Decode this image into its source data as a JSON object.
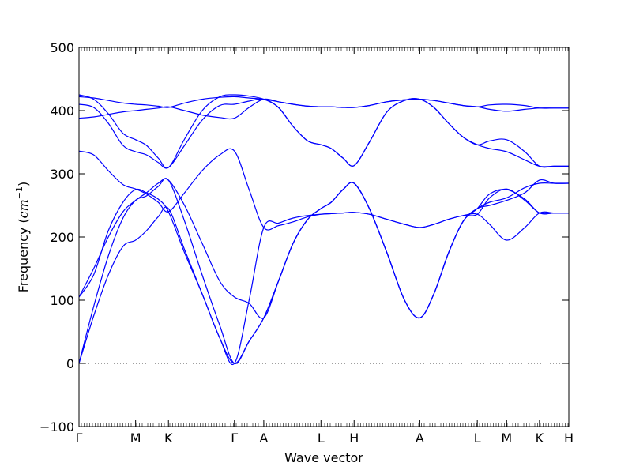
{
  "chart_data": {
    "type": "line",
    "title": "",
    "xlabel": "Wave vector",
    "ylabel": "Frequency",
    "ylabel_unit_prefix": "(",
    "ylabel_unit_italic": "cm",
    "ylabel_unit_exp": "−1",
    "ylabel_unit_suffix": ")",
    "ylim": [
      -100,
      500
    ],
    "yticks": [
      -100,
      0,
      100,
      200,
      300,
      400,
      500
    ],
    "xlim": [
      0,
      16.7
    ],
    "xticks": [
      {
        "label": "Γ",
        "x": 0
      },
      {
        "label": "M",
        "x": 1.93
      },
      {
        "label": "K",
        "x": 3.05
      },
      {
        "label": "Γ",
        "x": 5.3
      },
      {
        "label": "A",
        "x": 6.3
      },
      {
        "label": "L",
        "x": 8.25
      },
      {
        "label": "H",
        "x": 9.38
      },
      {
        "label": "A",
        "x": 11.62
      },
      {
        "label": "L",
        "x": 13.58
      },
      {
        "label": "M",
        "x": 14.58
      },
      {
        "label": "K",
        "x": 15.7
      },
      {
        "label": "H",
        "x": 16.7
      }
    ],
    "zero_line": "dotted",
    "series_color": "#0000ff",
    "series": [
      {
        "x": [
          0,
          0.5,
          1.0,
          1.5,
          1.93,
          2.3,
          2.7,
          3.05,
          3.6,
          4.2,
          4.8,
          5.3,
          5.8,
          6.3,
          6.8,
          7.3,
          7.8,
          8.25,
          8.6,
          9.0,
          9.38,
          9.9,
          10.5,
          11.1,
          11.62,
          12.1,
          12.6,
          13.1,
          13.58,
          14.0,
          14.58,
          15.2,
          15.7,
          16.2,
          16.7
        ],
        "values": [
          0,
          90,
          170,
          230,
          258,
          265,
          280,
          290,
          225,
          140,
          60,
          0,
          35,
          72,
          130,
          190,
          228,
          245,
          255,
          275,
          285,
          245,
          175,
          100,
          72,
          110,
          175,
          225,
          245,
          250,
          258,
          270,
          290,
          285,
          285
        ]
      },
      {
        "x": [
          0,
          0.5,
          1.0,
          1.5,
          1.93,
          2.3,
          2.7,
          3.05,
          3.6,
          4.2,
          4.8,
          5.3,
          5.8,
          6.3,
          6.8,
          7.3,
          7.8,
          8.25,
          8.6,
          9.0,
          9.38,
          9.9,
          10.5,
          11.1,
          11.62,
          12.1,
          12.6,
          13.1,
          13.58,
          14.0,
          14.58,
          15.2,
          15.7,
          16.2,
          16.7
        ],
        "values": [
          0,
          75,
          140,
          185,
          195,
          210,
          232,
          245,
          180,
          110,
          40,
          0,
          100,
          215,
          222,
          230,
          234,
          236,
          237,
          238,
          239,
          236,
          228,
          220,
          215,
          220,
          228,
          234,
          236,
          220,
          195,
          215,
          238,
          238,
          238
        ]
      },
      {
        "x": [
          0,
          0.5,
          1.0,
          1.5,
          1.93,
          2.3,
          2.7,
          3.05,
          3.6,
          4.2,
          4.8,
          5.3,
          5.8,
          6.3,
          6.8,
          7.3,
          7.8,
          8.25,
          8.6,
          9.0,
          9.38,
          9.9,
          10.5,
          11.1,
          11.62,
          12.1,
          12.6,
          13.1,
          13.58,
          14.0,
          14.58,
          15.2,
          15.7,
          16.2,
          16.7
        ],
        "values": [
          105,
          140,
          210,
          255,
          275,
          270,
          260,
          240,
          175,
          110,
          40,
          0,
          35,
          72,
          130,
          190,
          228,
          245,
          255,
          275,
          285,
          245,
          175,
          100,
          72,
          110,
          175,
          225,
          245,
          268,
          275,
          260,
          238,
          238,
          238
        ]
      },
      {
        "x": [
          0,
          0.5,
          1.0,
          1.5,
          1.93,
          2.3,
          2.7,
          3.05,
          3.6,
          4.2,
          4.8,
          5.3,
          5.8,
          6.3,
          6.8,
          7.3,
          7.8,
          8.25,
          8.6,
          9.0,
          9.38,
          9.9,
          10.5,
          11.1,
          11.62,
          12.1,
          12.6,
          13.1,
          13.58,
          14.0,
          14.58,
          15.2,
          15.7,
          16.2,
          16.7
        ],
        "values": [
          105,
          150,
          200,
          240,
          258,
          270,
          285,
          290,
          250,
          190,
          130,
          105,
          95,
          72,
          130,
          190,
          228,
          245,
          255,
          275,
          285,
          245,
          175,
          100,
          72,
          110,
          175,
          225,
          245,
          255,
          262,
          278,
          285,
          285,
          285
        ]
      },
      {
        "x": [
          0,
          0.5,
          1.0,
          1.5,
          1.93,
          2.3,
          2.7,
          3.05,
          3.6,
          4.2,
          4.8,
          5.3,
          5.8,
          6.3,
          6.8,
          7.3,
          7.8,
          8.25,
          8.6,
          9.0,
          9.38,
          9.9,
          10.5,
          11.1,
          11.62,
          12.1,
          12.6,
          13.1,
          13.58,
          14.0,
          14.58,
          15.2,
          15.7,
          16.2,
          16.7
        ],
        "values": [
          336,
          330,
          305,
          283,
          276,
          268,
          255,
          240,
          270,
          305,
          330,
          336,
          275,
          215,
          218,
          224,
          232,
          236,
          237,
          238,
          239,
          236,
          228,
          220,
          215,
          220,
          228,
          234,
          236,
          262,
          276,
          258,
          238,
          238,
          238
        ]
      },
      {
        "x": [
          0,
          0.5,
          1.0,
          1.5,
          1.93,
          2.3,
          2.7,
          3.05,
          3.6,
          4.2,
          4.8,
          5.3,
          5.8,
          6.3,
          6.8,
          7.3,
          7.8,
          8.25,
          8.6,
          9.0,
          9.38,
          9.9,
          10.5,
          11.1,
          11.62,
          12.1,
          12.6,
          13.1,
          13.58,
          14.0,
          14.58,
          15.2,
          15.7,
          16.2,
          16.7
        ],
        "values": [
          410,
          405,
          380,
          345,
          335,
          330,
          318,
          310,
          345,
          385,
          408,
          410,
          415,
          418,
          405,
          375,
          352,
          346,
          340,
          325,
          313,
          350,
          398,
          416,
          418,
          405,
          380,
          358,
          346,
          340,
          335,
          322,
          312,
          312,
          312
        ]
      },
      {
        "x": [
          0,
          0.5,
          1.0,
          1.5,
          1.93,
          2.3,
          2.7,
          3.05,
          3.6,
          4.2,
          4.8,
          5.3,
          5.8,
          6.3,
          6.8,
          7.3,
          7.8,
          8.25,
          8.6,
          9.0,
          9.38,
          9.9,
          10.5,
          11.1,
          11.62,
          12.1,
          12.6,
          13.1,
          13.58,
          14.0,
          14.58,
          15.2,
          15.7,
          16.2,
          16.7
        ],
        "values": [
          425,
          418,
          395,
          364,
          354,
          345,
          325,
          310,
          355,
          400,
          422,
          425,
          423,
          418,
          405,
          375,
          352,
          346,
          340,
          325,
          313,
          350,
          398,
          416,
          418,
          405,
          380,
          358,
          346,
          352,
          354,
          335,
          312,
          312,
          312
        ]
      },
      {
        "x": [
          0,
          0.5,
          1.0,
          1.5,
          1.93,
          2.3,
          2.7,
          3.05,
          3.6,
          4.2,
          4.8,
          5.3,
          5.8,
          6.3,
          6.8,
          7.3,
          7.8,
          8.25,
          8.6,
          9.0,
          9.38,
          9.9,
          10.5,
          11.1,
          11.62,
          12.1,
          12.6,
          13.1,
          13.58,
          14.0,
          14.58,
          15.2,
          15.7,
          16.2,
          16.7
        ],
        "values": [
          388,
          390,
          394,
          398,
          400,
          402,
          404,
          406,
          400,
          393,
          389,
          388,
          405,
          418,
          414,
          410,
          407,
          406,
          406,
          405,
          405,
          408,
          414,
          417,
          418,
          416,
          412,
          408,
          406,
          402,
          399,
          402,
          404,
          404,
          404
        ]
      },
      {
        "x": [
          0,
          0.5,
          1.0,
          1.5,
          1.93,
          2.3,
          2.7,
          3.05,
          3.6,
          4.2,
          4.8,
          5.3,
          5.8,
          6.3,
          6.8,
          7.3,
          7.8,
          8.25,
          8.6,
          9.0,
          9.38,
          9.9,
          10.5,
          11.1,
          11.62,
          12.1,
          12.6,
          13.1,
          13.58,
          14.0,
          14.58,
          15.2,
          15.7,
          16.2,
          16.7
        ],
        "values": [
          422,
          420,
          416,
          412,
          410,
          409,
          407,
          405,
          412,
          418,
          421,
          422,
          420,
          418,
          414,
          410,
          407,
          406,
          406,
          405,
          405,
          408,
          414,
          417,
          418,
          416,
          412,
          408,
          406,
          409,
          410,
          408,
          404,
          404,
          404
        ]
      }
    ]
  }
}
